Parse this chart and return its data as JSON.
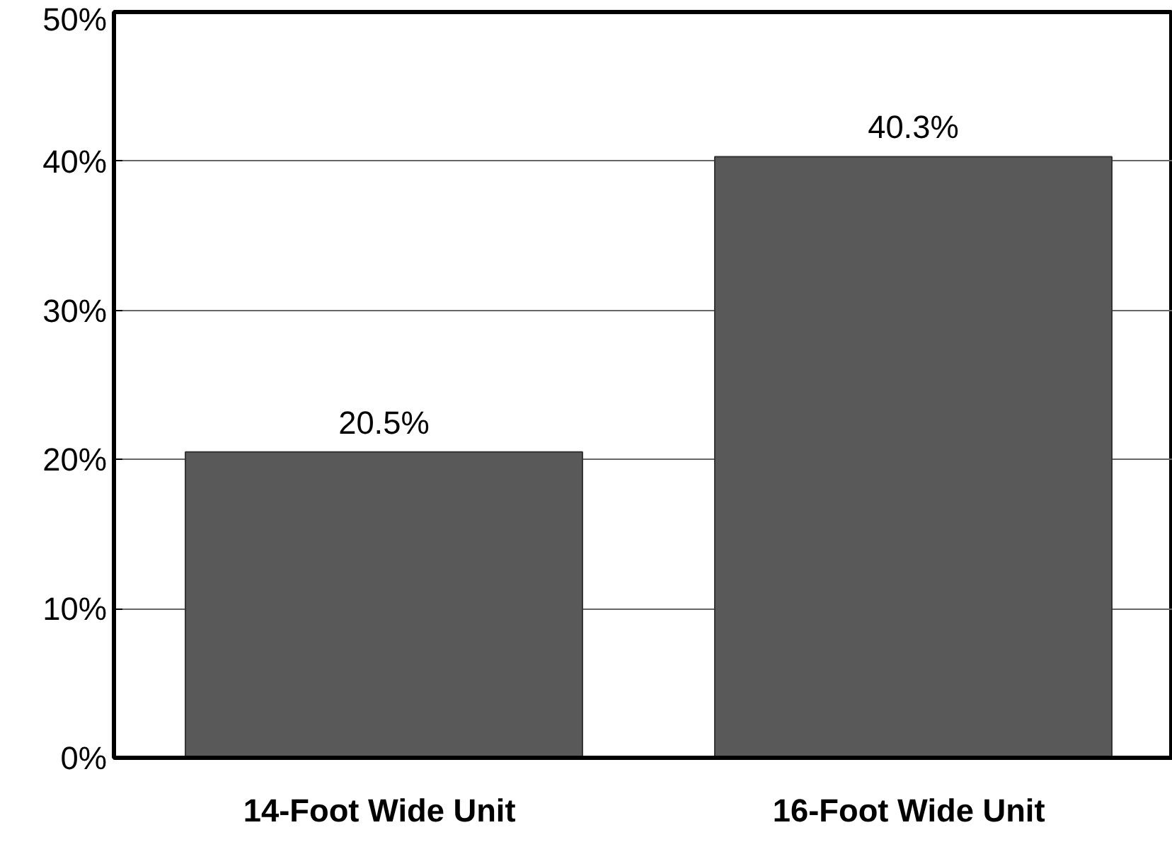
{
  "chart_data": {
    "type": "bar",
    "categories": [
      "14-Foot  Wide Unit",
      "16-Foot  Wide Unit"
    ],
    "values": [
      20.5,
      40.3
    ],
    "color": "#595959",
    "value_labels": [
      "20.5%",
      "40.3%"
    ],
    "ylim": [
      0,
      50
    ],
    "yticks": [
      {
        "value": 0,
        "label": "0%"
      },
      {
        "value": 10,
        "label": "10%"
      },
      {
        "value": 20,
        "label": "20%"
      },
      {
        "value": 30,
        "label": "30%"
      },
      {
        "value": 40,
        "label": "40%"
      },
      {
        "value": 50,
        "label": "50%"
      }
    ],
    "grid": "y"
  }
}
